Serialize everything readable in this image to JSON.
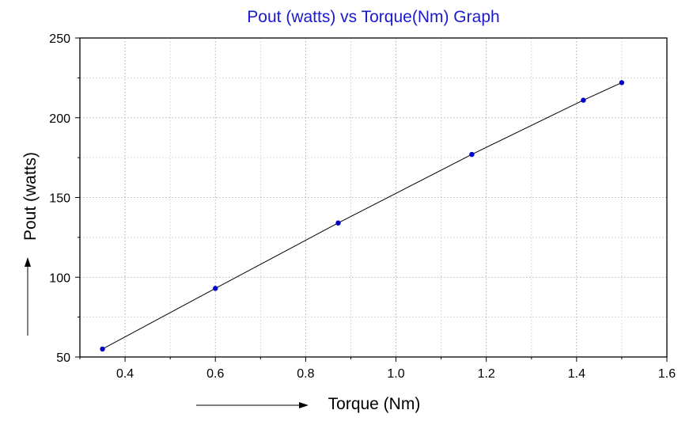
{
  "chart_data": {
    "type": "line",
    "title": "Pout (watts) vs Torque(Nm) Graph",
    "xlabel": "Torque (Nm)",
    "ylabel": "Pout (watts)",
    "xlim": [
      0.3,
      1.6
    ],
    "ylim": [
      50,
      250
    ],
    "x_ticks": [
      0.4,
      0.6,
      0.8,
      1.0,
      1.2,
      1.4,
      1.6
    ],
    "x_tick_labels": [
      "0.4",
      "0.6",
      "0.8",
      "1.0",
      "1.2",
      "1.4",
      "1.6"
    ],
    "y_ticks": [
      50,
      100,
      150,
      200,
      250
    ],
    "y_tick_labels": [
      "50",
      "100",
      "150",
      "200",
      "250"
    ],
    "grid": true,
    "series": [
      {
        "x": [
          0.35,
          0.6,
          0.872,
          1.168,
          1.415,
          1.5
        ],
        "y": [
          55,
          93,
          134,
          177,
          211,
          222
        ],
        "line_color": "#000000",
        "marker_color": "#0000cc"
      }
    ]
  }
}
